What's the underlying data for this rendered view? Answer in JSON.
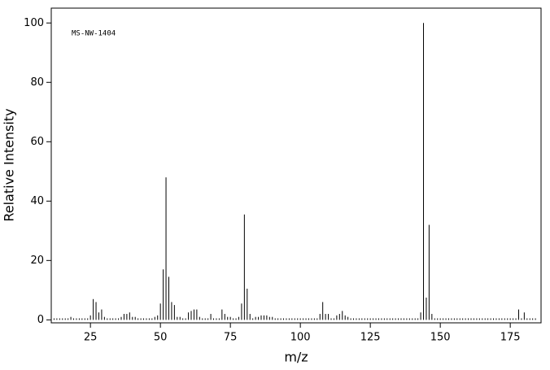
{
  "chart_data": {
    "type": "stem",
    "annotation": "MS-NW-1404",
    "xlabel": "m/z",
    "ylabel": "Relative Intensity",
    "color": "#000000",
    "xlim": [
      11,
      186
    ],
    "ylim": [
      -1,
      105
    ],
    "xticks": [
      25,
      50,
      75,
      100,
      125,
      150,
      175
    ],
    "yticks": [
      0,
      20,
      40,
      60,
      80,
      100
    ],
    "x": [
      12,
      13,
      14,
      15,
      16,
      17,
      18,
      19,
      20,
      21,
      22,
      23,
      24,
      25,
      26,
      27,
      28,
      29,
      30,
      31,
      32,
      33,
      34,
      35,
      36,
      37,
      38,
      39,
      40,
      41,
      42,
      43,
      44,
      45,
      46,
      47,
      48,
      49,
      50,
      51,
      52,
      53,
      54,
      55,
      56,
      57,
      58,
      59,
      60,
      61,
      62,
      63,
      64,
      65,
      66,
      67,
      68,
      69,
      70,
      71,
      72,
      73,
      74,
      75,
      76,
      77,
      78,
      79,
      80,
      81,
      82,
      83,
      84,
      85,
      86,
      87,
      88,
      89,
      90,
      91,
      92,
      93,
      94,
      95,
      96,
      97,
      98,
      99,
      100,
      101,
      102,
      103,
      104,
      105,
      106,
      107,
      108,
      109,
      110,
      111,
      112,
      113,
      114,
      115,
      116,
      117,
      118,
      119,
      120,
      121,
      122,
      123,
      124,
      125,
      126,
      127,
      128,
      129,
      130,
      131,
      132,
      133,
      134,
      135,
      136,
      137,
      138,
      139,
      140,
      141,
      142,
      143,
      144,
      145,
      146,
      147,
      148,
      149,
      150,
      151,
      152,
      153,
      154,
      155,
      156,
      157,
      158,
      159,
      160,
      161,
      162,
      163,
      164,
      165,
      166,
      167,
      168,
      169,
      170,
      171,
      172,
      173,
      174,
      175,
      176,
      177,
      178,
      179,
      180,
      181,
      182,
      183,
      184
    ],
    "values": [
      0.5,
      0.5,
      0.5,
      0.5,
      0.5,
      0.5,
      1,
      0.5,
      0.5,
      0.5,
      0.5,
      0.5,
      0.5,
      1.5,
      7,
      6,
      2.5,
      3.5,
      1,
      0.5,
      0.5,
      0.5,
      0.5,
      0.5,
      1,
      2,
      2,
      2.5,
      1,
      1,
      0.5,
      0.5,
      0.5,
      0.5,
      0.5,
      0.5,
      1,
      1.5,
      5.5,
      17,
      48,
      14.5,
      6,
      5,
      1,
      1,
      0.5,
      0.5,
      2.5,
      3,
      3.5,
      3.5,
      1,
      0.5,
      0.5,
      0.5,
      2,
      0.5,
      0.5,
      0.5,
      3.5,
      2,
      1,
      1,
      0.5,
      0.5,
      1,
      5.5,
      35.5,
      10.5,
      2,
      0.5,
      1,
      1,
      1.5,
      1.5,
      1.5,
      1,
      1,
      0.5,
      0.5,
      0.5,
      0.5,
      0.5,
      0.5,
      0.5,
      0.5,
      0.5,
      0.5,
      0.5,
      0.5,
      0.5,
      0.5,
      0.5,
      0.5,
      2,
      6,
      2,
      2,
      0.5,
      0.5,
      1.5,
      2,
      3,
      1.5,
      1,
      0.5,
      0.5,
      0.5,
      0.5,
      0.5,
      0.5,
      0.5,
      0.5,
      0.5,
      0.5,
      0.5,
      0.5,
      0.5,
      0.5,
      0.5,
      0.5,
      0.5,
      0.5,
      0.5,
      0.5,
      0.5,
      0.5,
      0.5,
      0.5,
      0.5,
      2.5,
      100,
      7.5,
      32,
      2,
      0.5,
      0.5,
      0.5,
      0.5,
      0.5,
      0.5,
      0.5,
      0.5,
      0.5,
      0.5,
      0.5,
      0.5,
      0.5,
      0.5,
      0.5,
      0.5,
      0.5,
      0.5,
      0.5,
      0.5,
      0.5,
      0.5,
      0.5,
      0.5,
      0.5,
      0.5,
      0.5,
      0.5,
      0.5,
      0.5,
      3.5,
      0.5,
      2.5,
      0.5,
      0.5,
      0.5,
      0.5
    ]
  }
}
